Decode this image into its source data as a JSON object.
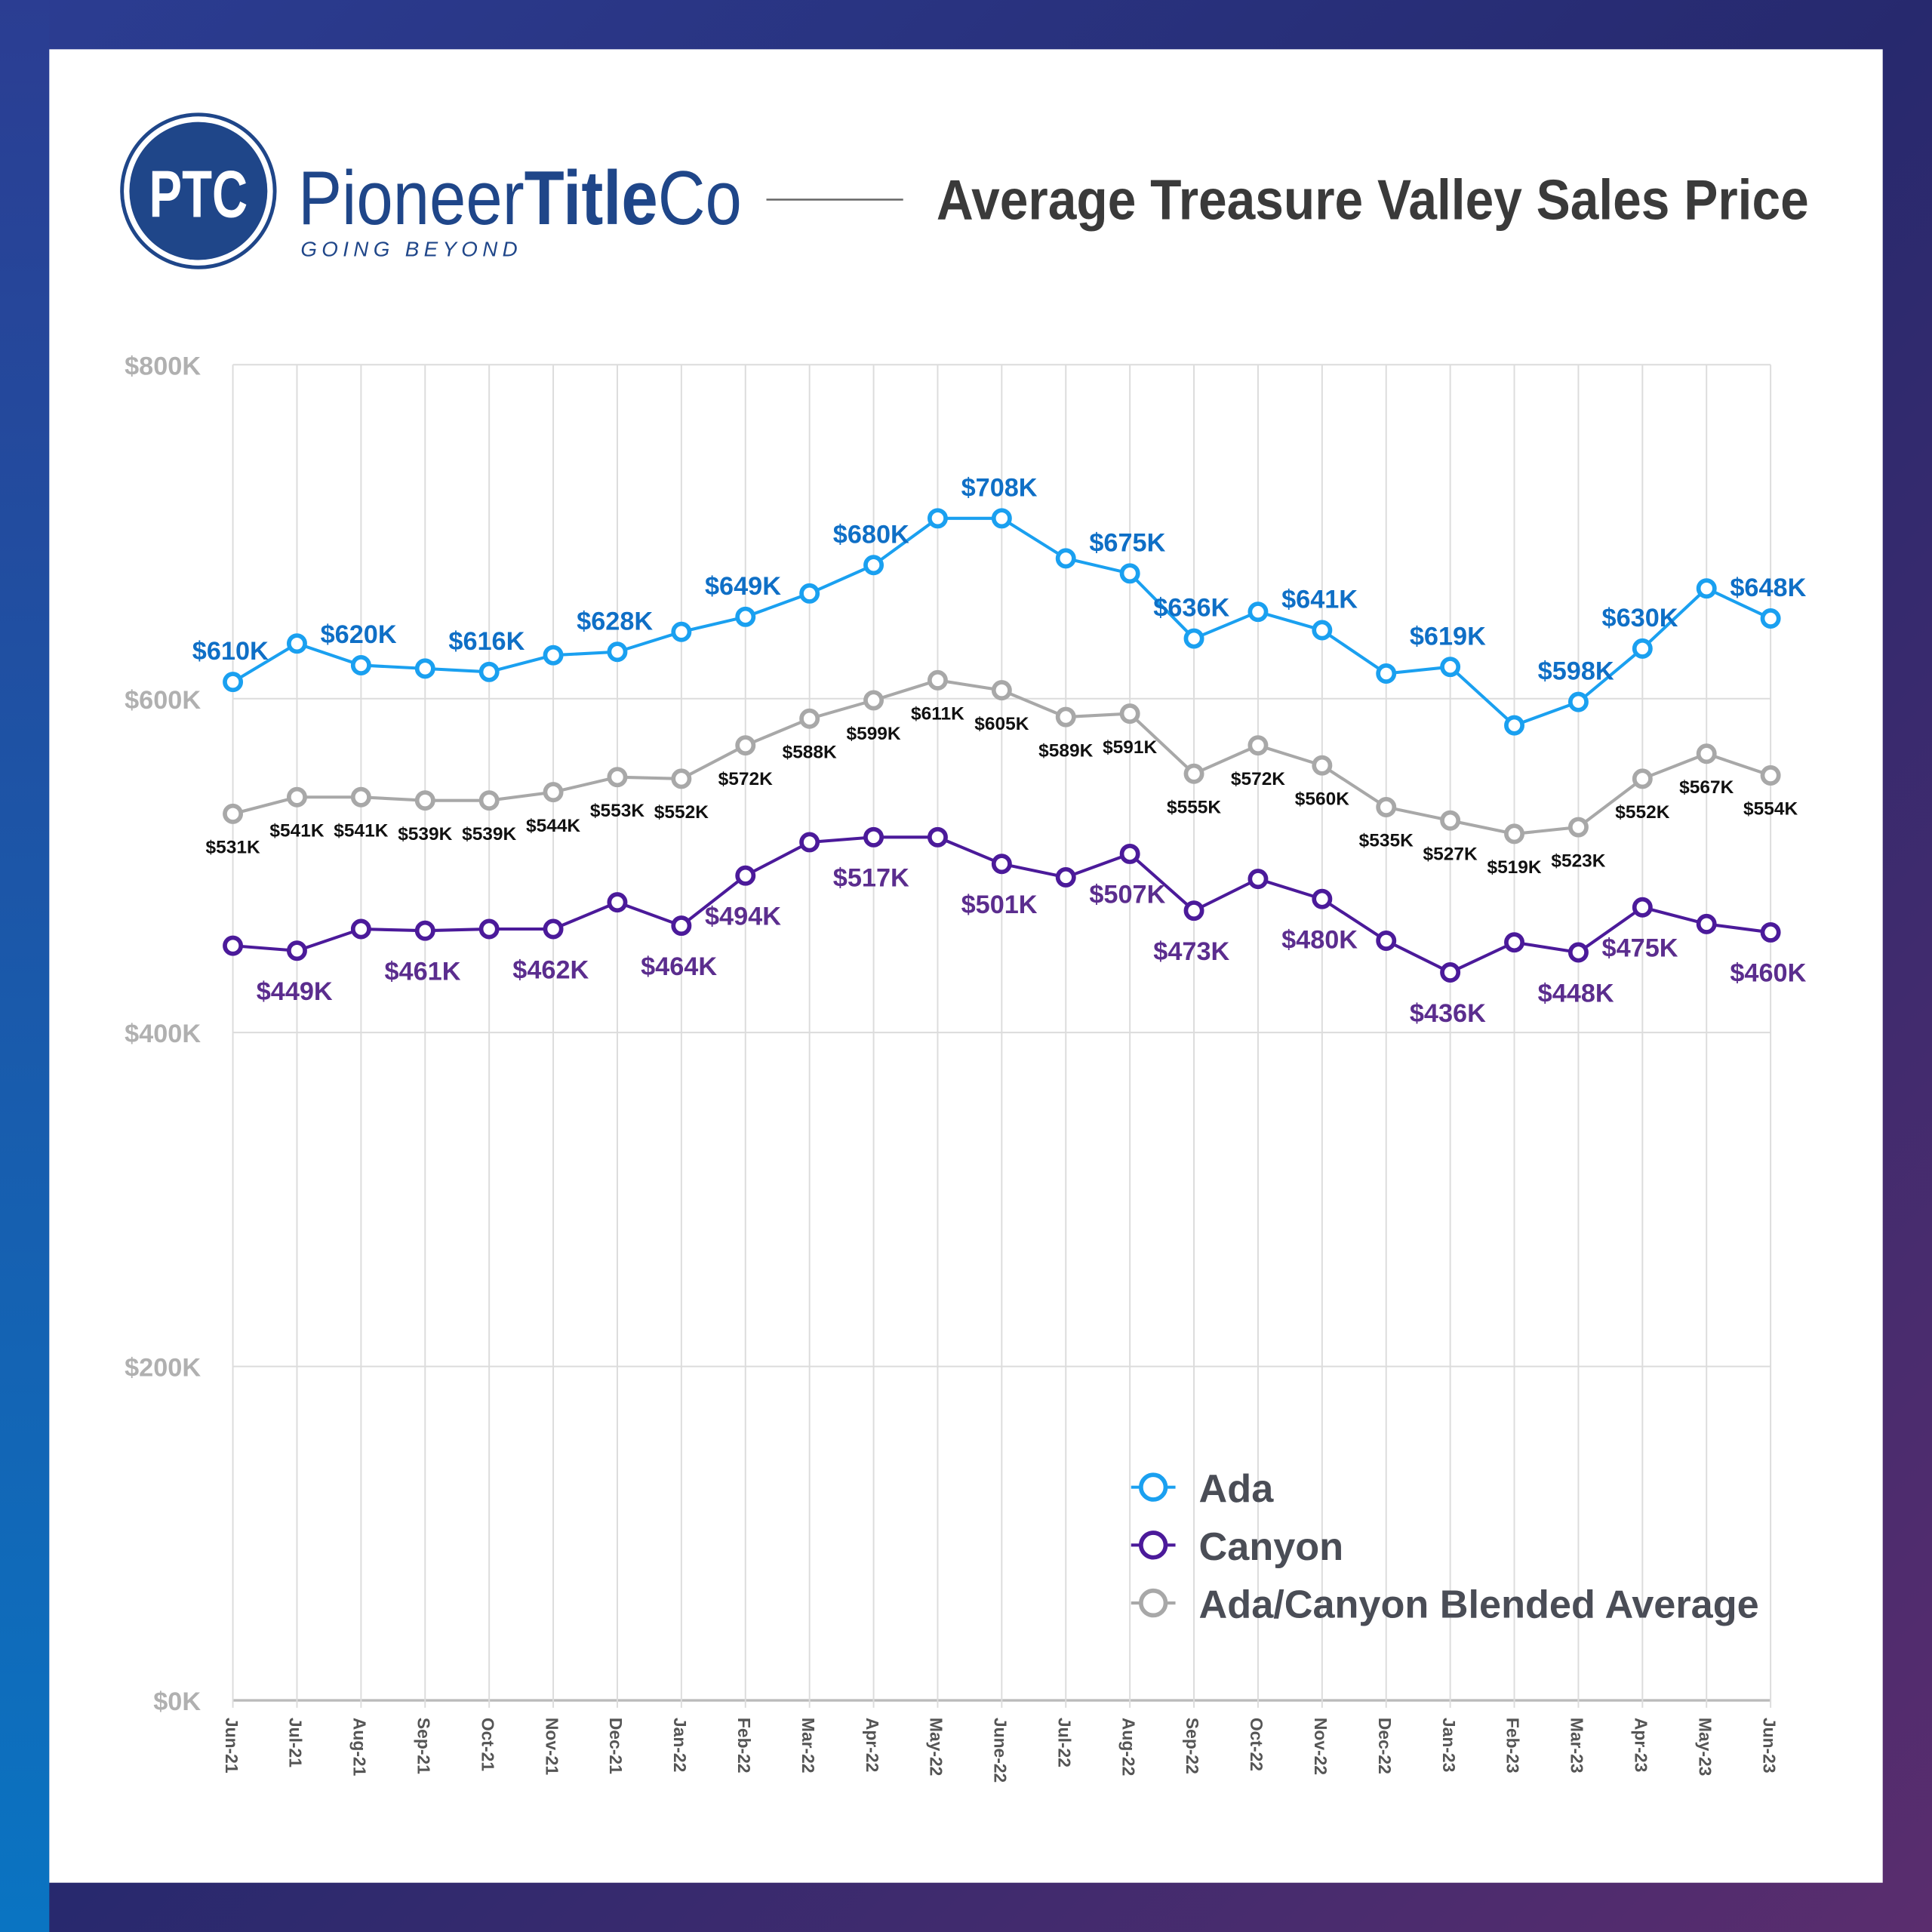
{
  "brand": {
    "logo_mark": "PTC",
    "name_light": "Pioneer",
    "name_bold": "Title",
    "name_end": "Co",
    "tagline": "GOING BEYOND",
    "color": "#1f4689"
  },
  "chart_data": {
    "type": "line",
    "title": "Average Treasure Valley Sales Price",
    "xlabel": "",
    "ylabel": "",
    "ylim": [
      0,
      800
    ],
    "y_ticks": [
      0,
      200,
      400,
      600,
      800
    ],
    "y_tick_labels": [
      "$0K",
      "$200K",
      "$400K",
      "$600K",
      "$800K"
    ],
    "grid": true,
    "legend_position": "bottom-right",
    "categories": [
      "Jun-21",
      "Jul-21",
      "Aug-21",
      "Sep-21",
      "Oct-21",
      "Nov-21",
      "Dec-21",
      "Jan-22",
      "Feb-22",
      "Mar-22",
      "Apr-22",
      "May-22",
      "June-22",
      "Jul-22",
      "Aug-22",
      "Sep-22",
      "Oct-22",
      "Nov-22",
      "Dec-22",
      "Jan-23",
      "Feb-23",
      "Mar-23",
      "Apr-23",
      "May-23",
      "Jun-23"
    ],
    "series": [
      {
        "name": "Ada",
        "color": "#1aa0f0",
        "label_color": "#0f6fc6",
        "values": [
          610,
          633,
          620,
          618,
          616,
          626,
          628,
          640,
          649,
          663,
          680,
          708,
          708,
          684,
          675,
          636,
          652,
          641,
          615,
          619,
          584,
          598,
          630,
          666,
          648
        ],
        "labels": [
          "$610K",
          null,
          "$620K",
          null,
          "$616K",
          null,
          "$628K",
          null,
          "$649K",
          null,
          "$680K",
          null,
          "$708K",
          null,
          "$675K",
          "$636K",
          null,
          "$641K",
          null,
          "$619K",
          null,
          "$598K",
          "$630K",
          null,
          "$648K"
        ]
      },
      {
        "name": "Canyon",
        "color": "#4b1a9a",
        "label_color": "#5b2d8e",
        "values": [
          452,
          449,
          462,
          461,
          462,
          462,
          478,
          464,
          494,
          514,
          517,
          517,
          501,
          493,
          507,
          473,
          492,
          480,
          455,
          436,
          454,
          448,
          475,
          465,
          460
        ],
        "labels": [
          null,
          "$449K",
          null,
          "$461K",
          null,
          "$462K",
          null,
          "$464K",
          "$494K",
          null,
          "$517K",
          null,
          "$501K",
          null,
          "$507K",
          "$473K",
          null,
          "$480K",
          null,
          "$436K",
          null,
          "$448K",
          "$475K",
          null,
          "$460K"
        ]
      },
      {
        "name": "Ada/Canyon Blended Average",
        "color": "#a8a8a8",
        "label_color": "#111111",
        "values": [
          531,
          541,
          541,
          539,
          539,
          544,
          553,
          552,
          572,
          588,
          599,
          611,
          605,
          589,
          591,
          555,
          572,
          560,
          535,
          527,
          519,
          523,
          552,
          567,
          554
        ],
        "labels": [
          "$531K",
          "$541K",
          "$541K",
          "$539K",
          "$539K",
          "$544K",
          "$553K",
          "$552K",
          "$572K",
          "$588K",
          "$599K",
          "$611K",
          "$605K",
          "$589K",
          "$591K",
          "$555K",
          "$572K",
          "$560K",
          "$535K",
          "$527K",
          "$519K",
          "$523K",
          "$552K",
          "$567K",
          "$554K"
        ]
      }
    ]
  }
}
